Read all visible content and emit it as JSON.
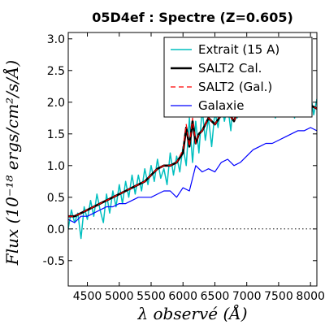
{
  "chart_data": {
    "type": "line",
    "title": "05D4ef : Spectre (Z=0.605)",
    "xlabel": "λ observé (Å)",
    "ylabel": "Flux (10⁻¹⁸ ergs/cm²/s/Å)",
    "xlim": [
      4200,
      8100
    ],
    "ylim": [
      -0.9,
      3.1
    ],
    "xticks": [
      4500,
      5000,
      5500,
      6000,
      6500,
      7000,
      7500,
      8000
    ],
    "xtick_labels": [
      "4500",
      "5000",
      "5500",
      "6000",
      "6500",
      "7000",
      "7500",
      "8000"
    ],
    "yticks": [
      -0.5,
      0.0,
      0.5,
      1.0,
      1.5,
      2.0,
      2.5,
      3.0
    ],
    "ytick_labels": [
      "-0.5",
      "0.0",
      "0.5",
      "1.0",
      "1.5",
      "2.0",
      "2.5",
      "3.0"
    ],
    "zero_line": {
      "y": 0,
      "style": "dotted"
    },
    "legend_position": "top-right",
    "series": [
      {
        "name": "Extrait (15 A)",
        "color": "#00bfbf",
        "x": [
          4200,
          4250,
          4300,
          4350,
          4400,
          4450,
          4500,
          4550,
          4600,
          4650,
          4700,
          4750,
          4800,
          4850,
          4900,
          4950,
          5000,
          5050,
          5100,
          5150,
          5200,
          5250,
          5300,
          5350,
          5400,
          5450,
          5500,
          5550,
          5600,
          5650,
          5700,
          5750,
          5800,
          5850,
          5900,
          5950,
          6000,
          6050,
          6100,
          6150,
          6200,
          6250,
          6300,
          6350,
          6400,
          6450,
          6500,
          6550,
          6600,
          6650,
          6700,
          6750,
          6800,
          6850,
          6900,
          6950,
          7000,
          7050,
          7100,
          7150,
          7200,
          7250,
          7300,
          7350,
          7400,
          7450,
          7500,
          7550,
          7600,
          7650,
          7700,
          7750,
          7800,
          7850,
          7900,
          7950,
          8000,
          8050,
          8100
        ],
        "y": [
          0.0,
          0.3,
          0.1,
          0.25,
          -0.15,
          0.35,
          0.15,
          0.45,
          0.2,
          0.55,
          0.3,
          0.1,
          0.55,
          0.25,
          0.6,
          0.35,
          0.7,
          0.4,
          0.75,
          0.5,
          0.85,
          0.55,
          0.85,
          0.6,
          0.95,
          0.7,
          1.0,
          0.75,
          1.1,
          0.8,
          0.95,
          0.7,
          1.2,
          0.85,
          1.15,
          0.9,
          1.3,
          1.0,
          1.75,
          1.05,
          1.7,
          1.2,
          1.9,
          1.4,
          1.75,
          1.3,
          1.85,
          1.6,
          2.0,
          1.7,
          1.95,
          1.55,
          2.15,
          1.75,
          1.95,
          2.2,
          2.45,
          2.05,
          2.55,
          2.3,
          2.2,
          1.9,
          2.3,
          2.0,
          2.1,
          1.75,
          2.35,
          1.85,
          2.2,
          1.8,
          2.15,
          1.75,
          2.1,
          1.8,
          2.1,
          1.85,
          2.15,
          1.8,
          2.05
        ]
      },
      {
        "name": "SALT2 Cal.",
        "color": "#000000",
        "x": [
          4200,
          4300,
          4400,
          4500,
          4600,
          4700,
          4800,
          4900,
          5000,
          5100,
          5200,
          5300,
          5400,
          5500,
          5600,
          5700,
          5800,
          5900,
          6000,
          6050,
          6100,
          6150,
          6200,
          6250,
          6300,
          6400,
          6500,
          6600,
          6700,
          6800,
          6900,
          7000,
          7100,
          7200,
          7300,
          7400,
          7500,
          7600,
          7700,
          7800,
          7900,
          8000,
          8100
        ],
        "y": [
          0.2,
          0.2,
          0.25,
          0.3,
          0.35,
          0.4,
          0.45,
          0.5,
          0.55,
          0.6,
          0.65,
          0.7,
          0.75,
          0.85,
          0.95,
          1.0,
          1.0,
          1.05,
          1.2,
          1.6,
          1.3,
          1.7,
          1.35,
          1.5,
          1.55,
          1.75,
          1.65,
          1.8,
          1.85,
          1.7,
          1.95,
          2.2,
          2.35,
          2.15,
          2.05,
          2.1,
          2.0,
          1.95,
          1.95,
          1.9,
          1.95,
          1.95,
          1.9
        ]
      },
      {
        "name": "SALT2 (Gal.)",
        "color": "#ff0000",
        "x": [
          4200,
          4300,
          4400,
          4500,
          4600,
          4700,
          4800,
          4900,
          5000,
          5100,
          5200,
          5300,
          5400,
          5500,
          5600,
          5700,
          5800,
          5900,
          6000,
          6050,
          6100,
          6150,
          6200,
          6250,
          6300,
          6400,
          6500,
          6600,
          6700,
          6800,
          6900,
          7000,
          7100,
          7200,
          7300,
          7400,
          7500,
          7600,
          7700,
          7800,
          7900,
          8000,
          8100
        ],
        "y": [
          0.2,
          0.2,
          0.25,
          0.3,
          0.35,
          0.4,
          0.45,
          0.5,
          0.55,
          0.6,
          0.65,
          0.7,
          0.75,
          0.85,
          0.95,
          1.0,
          1.0,
          1.05,
          1.25,
          1.65,
          1.3,
          1.75,
          1.35,
          1.5,
          1.55,
          1.75,
          1.65,
          1.8,
          1.85,
          1.7,
          1.95,
          2.2,
          2.35,
          2.15,
          2.05,
          2.1,
          2.0,
          1.95,
          1.95,
          1.9,
          1.95,
          1.95,
          1.9
        ]
      },
      {
        "name": "Galaxie",
        "color": "#0000ff",
        "x": [
          4200,
          4300,
          4400,
          4500,
          4600,
          4700,
          4800,
          4900,
          5000,
          5100,
          5200,
          5300,
          5400,
          5500,
          5600,
          5700,
          5800,
          5900,
          6000,
          6100,
          6200,
          6300,
          6400,
          6500,
          6600,
          6700,
          6800,
          6900,
          7000,
          7100,
          7200,
          7300,
          7400,
          7500,
          7600,
          7700,
          7800,
          7900,
          8000,
          8100
        ],
        "y": [
          0.15,
          0.1,
          0.2,
          0.2,
          0.25,
          0.3,
          0.35,
          0.35,
          0.4,
          0.4,
          0.45,
          0.5,
          0.5,
          0.5,
          0.55,
          0.6,
          0.6,
          0.5,
          0.65,
          0.6,
          1.0,
          0.9,
          0.95,
          0.9,
          1.05,
          1.1,
          1.0,
          1.05,
          1.15,
          1.25,
          1.3,
          1.35,
          1.35,
          1.4,
          1.45,
          1.5,
          1.55,
          1.55,
          1.6,
          1.55
        ]
      }
    ]
  }
}
